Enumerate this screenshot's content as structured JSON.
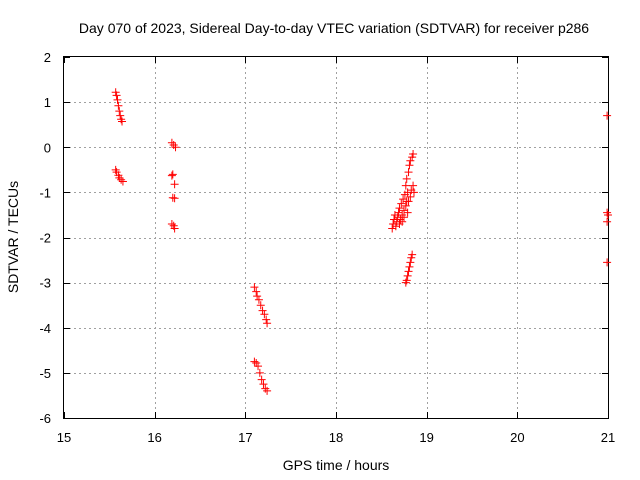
{
  "chart_data": {
    "type": "scatter",
    "title": "Day 070 of 2023, Sidereal Day-to-day VTEC variation (SDTVAR) for receiver p286",
    "xlabel": "GPS time / hours",
    "ylabel": "SDTVAR / TECUs",
    "xlim": [
      15,
      21
    ],
    "ylim": [
      -6,
      2
    ],
    "xticks": [
      15,
      16,
      17,
      18,
      19,
      20,
      21
    ],
    "yticks": [
      -6,
      -5,
      -4,
      -3,
      -2,
      -1,
      0,
      1,
      2
    ],
    "grid": true,
    "marker": "+",
    "series": [
      {
        "name": "SDTVAR",
        "color": "#ff0000",
        "points": [
          [
            15.57,
            1.22
          ],
          [
            15.58,
            1.15
          ],
          [
            15.59,
            1.05
          ],
          [
            15.6,
            0.92
          ],
          [
            15.61,
            0.8
          ],
          [
            15.62,
            0.7
          ],
          [
            15.63,
            0.62
          ],
          [
            15.64,
            0.57
          ],
          [
            15.57,
            -0.5
          ],
          [
            15.58,
            -0.55
          ],
          [
            15.6,
            -0.62
          ],
          [
            15.61,
            -0.68
          ],
          [
            15.63,
            -0.72
          ],
          [
            15.65,
            -0.76
          ],
          [
            16.19,
            0.1
          ],
          [
            16.21,
            0.05
          ],
          [
            16.23,
            0.0
          ],
          [
            16.19,
            -0.63
          ],
          [
            16.2,
            -0.6
          ],
          [
            16.22,
            -0.82
          ],
          [
            16.2,
            -1.12
          ],
          [
            16.22,
            -1.13
          ],
          [
            16.19,
            -1.7
          ],
          [
            16.21,
            -1.74
          ],
          [
            16.22,
            -1.8
          ],
          [
            17.1,
            -3.1
          ],
          [
            17.12,
            -3.2
          ],
          [
            17.13,
            -3.3
          ],
          [
            17.15,
            -3.38
          ],
          [
            17.17,
            -3.5
          ],
          [
            17.19,
            -3.62
          ],
          [
            17.21,
            -3.7
          ],
          [
            17.23,
            -3.82
          ],
          [
            17.24,
            -3.9
          ],
          [
            17.1,
            -4.75
          ],
          [
            17.12,
            -4.78
          ],
          [
            17.14,
            -4.85
          ],
          [
            17.16,
            -5.0
          ],
          [
            17.18,
            -5.15
          ],
          [
            17.2,
            -5.25
          ],
          [
            17.22,
            -5.35
          ],
          [
            17.24,
            -5.4
          ],
          [
            18.62,
            -1.8
          ],
          [
            18.63,
            -1.7
          ],
          [
            18.64,
            -1.6
          ],
          [
            18.65,
            -1.5
          ],
          [
            18.66,
            -1.75
          ],
          [
            18.67,
            -1.65
          ],
          [
            18.68,
            -1.55
          ],
          [
            18.69,
            -1.45
          ],
          [
            18.7,
            -1.7
          ],
          [
            18.7,
            -1.35
          ],
          [
            18.71,
            -1.6
          ],
          [
            18.72,
            -1.25
          ],
          [
            18.73,
            -1.5
          ],
          [
            18.73,
            -1.65
          ],
          [
            18.74,
            -1.15
          ],
          [
            18.75,
            -1.4
          ],
          [
            18.75,
            -1.55
          ],
          [
            18.76,
            -1.05
          ],
          [
            18.77,
            -1.3
          ],
          [
            18.77,
            -0.85
          ],
          [
            18.78,
            -1.2
          ],
          [
            18.78,
            -0.7
          ],
          [
            18.79,
            -1.45
          ],
          [
            18.79,
            -1.0
          ],
          [
            18.8,
            -0.55
          ],
          [
            18.8,
            -1.2
          ],
          [
            18.81,
            -0.4
          ],
          [
            18.82,
            -1.1
          ],
          [
            18.82,
            -0.3
          ],
          [
            18.83,
            -0.95
          ],
          [
            18.84,
            -0.22
          ],
          [
            18.85,
            -0.85
          ],
          [
            18.85,
            -0.15
          ],
          [
            18.86,
            -1.0
          ],
          [
            18.77,
            -3.0
          ],
          [
            18.78,
            -2.95
          ],
          [
            18.79,
            -2.85
          ],
          [
            18.8,
            -2.75
          ],
          [
            18.81,
            -2.65
          ],
          [
            18.82,
            -2.55
          ],
          [
            18.83,
            -2.45
          ],
          [
            18.84,
            -2.38
          ],
          [
            20.99,
            0.7
          ],
          [
            20.99,
            -1.45
          ],
          [
            21.0,
            -1.5
          ],
          [
            20.99,
            -1.65
          ],
          [
            20.99,
            -2.55
          ]
        ]
      }
    ]
  }
}
